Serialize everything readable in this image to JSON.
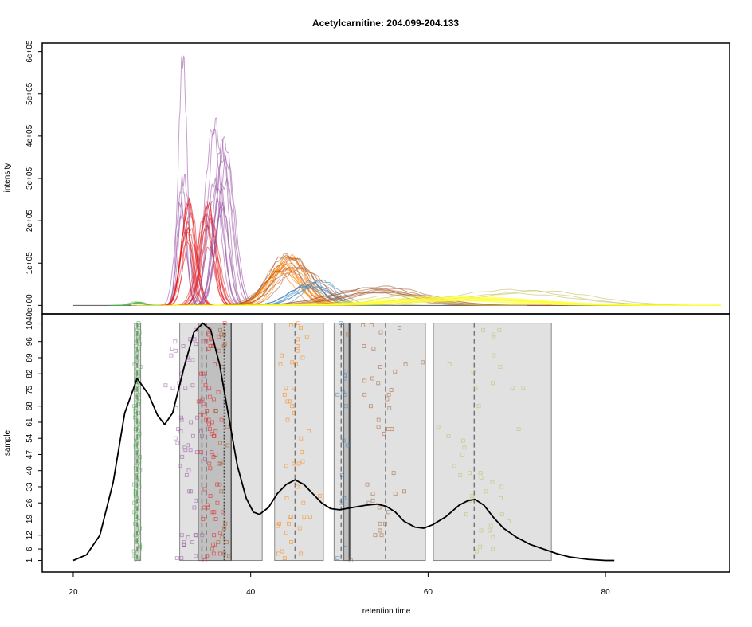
{
  "chart_data": [
    {
      "type": "line",
      "panel": "chromatograms",
      "title": "Acetylcarnitine: 204.099-204.133",
      "ylabel": "intensity",
      "xlim": [
        16.5,
        94
      ],
      "ylim": [
        -20000,
        620000
      ],
      "y_ticks": [
        0,
        100000,
        200000,
        300000,
        400000,
        500000,
        600000
      ],
      "y_tick_labels": [
        "0e+00",
        "1e+05",
        "2e+05",
        "3e+05",
        "4e+05",
        "5e+05",
        "6e+05"
      ],
      "baseline_range": [
        20,
        93
      ],
      "groups": [
        {
          "color": "#4daf4a",
          "rt": 27.2,
          "height": 9000,
          "width": 0.7,
          "count": 6
        },
        {
          "color": "#984ea3",
          "rt": 32.2,
          "height": 590000,
          "width": 0.45,
          "count": 1
        },
        {
          "color": "#984ea3",
          "rt": 32.3,
          "height": 320000,
          "width": 0.6,
          "count": 4
        },
        {
          "color": "#e41a1c",
          "rt": 33.0,
          "height": 250000,
          "width": 0.8,
          "count": 10
        },
        {
          "color": "#e41a1c",
          "rt": 35.2,
          "height": 250000,
          "width": 0.9,
          "count": 10
        },
        {
          "color": "#984ea3",
          "rt": 35.9,
          "height": 460000,
          "width": 0.8,
          "count": 4
        },
        {
          "color": "#984ea3",
          "rt": 36.9,
          "height": 420000,
          "width": 0.9,
          "count": 8
        },
        {
          "color": "#ff7f00",
          "rt": 43.8,
          "height": 130000,
          "width": 2.0,
          "count": 14
        },
        {
          "color": "#a65628",
          "rt": 44.5,
          "height": 130000,
          "width": 2.4,
          "count": 8
        },
        {
          "color": "#377eb8",
          "rt": 47.0,
          "height": 60000,
          "width": 2.2,
          "count": 8
        },
        {
          "color": "#a65628",
          "rt": 54.0,
          "height": 45000,
          "width": 4.5,
          "count": 8
        },
        {
          "color": "#bebe5a",
          "rt": 57.0,
          "height": 25000,
          "width": 3.5,
          "count": 3
        },
        {
          "color": "#bebe5a",
          "rt": 71.0,
          "height": 40000,
          "width": 6.0,
          "count": 3
        },
        {
          "color": "#ffff33",
          "rt": 64.0,
          "height": 20000,
          "width": 8.0,
          "count": 14
        }
      ]
    },
    {
      "type": "scatter",
      "panel": "peak-density",
      "xlabel": "retention time",
      "ylabel": "sample",
      "xlim": [
        16.5,
        94
      ],
      "ylim": [
        -4,
        108
      ],
      "x_ticks": [
        20,
        40,
        60,
        80
      ],
      "y_ticks": [
        1,
        6,
        12,
        19,
        26,
        33,
        40,
        47,
        54,
        61,
        68,
        75,
        82,
        89,
        96,
        104
      ],
      "feature_groups_light": [
        [
          26.9,
          27.6
        ],
        [
          32.0,
          41.3
        ],
        [
          42.7,
          48.2
        ],
        [
          49.4,
          59.7
        ],
        [
          60.6,
          73.9
        ]
      ],
      "feature_groups_dark": [
        [
          34.1,
          37.8
        ],
        [
          50.5,
          51.2
        ]
      ],
      "dashed_lines": [
        27.2,
        34.5,
        35.0,
        45.0,
        50.2,
        55.2,
        65.2
      ],
      "dotted_lines": [
        37.0
      ],
      "solid_lines": [
        37.8,
        51.1
      ],
      "density_curve": [
        [
          20.0,
          1.0
        ],
        [
          21.5,
          3.5
        ],
        [
          23.0,
          12.0
        ],
        [
          24.5,
          35.0
        ],
        [
          25.8,
          65.0
        ],
        [
          27.2,
          80.0
        ],
        [
          28.5,
          73.0
        ],
        [
          29.5,
          64.0
        ],
        [
          30.3,
          60.0
        ],
        [
          31.2,
          65.0
        ],
        [
          32.5,
          85.0
        ],
        [
          33.6,
          100.0
        ],
        [
          34.6,
          104.0
        ],
        [
          35.5,
          101.0
        ],
        [
          36.5,
          86.0
        ],
        [
          37.5,
          64.0
        ],
        [
          38.5,
          42.0
        ],
        [
          39.5,
          28.0
        ],
        [
          40.3,
          22.0
        ],
        [
          41.0,
          21.0
        ],
        [
          42.0,
          24.0
        ],
        [
          43.0,
          30.0
        ],
        [
          44.0,
          34.0
        ],
        [
          45.0,
          36.0
        ],
        [
          46.0,
          34.0
        ],
        [
          47.0,
          30.0
        ],
        [
          48.0,
          26.0
        ],
        [
          49.0,
          23.5
        ],
        [
          50.0,
          23.0
        ],
        [
          51.5,
          24.0
        ],
        [
          53.0,
          25.0
        ],
        [
          54.3,
          25.5
        ],
        [
          55.3,
          24.5
        ],
        [
          56.3,
          22.0
        ],
        [
          57.3,
          18.0
        ],
        [
          58.5,
          15.5
        ],
        [
          59.5,
          15.0
        ],
        [
          60.5,
          16.5
        ],
        [
          62.0,
          20.0
        ],
        [
          63.5,
          25.0
        ],
        [
          64.5,
          27.0
        ],
        [
          65.3,
          27.5
        ],
        [
          66.3,
          25.0
        ],
        [
          67.3,
          20.0
        ],
        [
          68.5,
          15.0
        ],
        [
          70.0,
          11.0
        ],
        [
          71.5,
          8.0
        ],
        [
          73.0,
          6.0
        ],
        [
          74.5,
          4.0
        ],
        [
          76.0,
          2.5
        ],
        [
          78.0,
          1.5
        ],
        [
          80.0,
          1.0
        ],
        [
          81.0,
          1.0
        ]
      ],
      "peak_points": [
        {
          "color": "#4daf4a",
          "center": 27.2,
          "spread": 0.25,
          "count": 104
        },
        {
          "color": "#984ea3",
          "center": 33.0,
          "spread": 1.4,
          "count": 60
        },
        {
          "color": "#e41a1c",
          "center": 35.5,
          "spread": 1.0,
          "count": 60
        },
        {
          "color": "#a65628",
          "center": 36.8,
          "spread": 0.7,
          "count": 25
        },
        {
          "color": "#ff7f00",
          "center": 45.0,
          "spread": 1.8,
          "count": 45
        },
        {
          "color": "#377eb8",
          "center": 50.3,
          "spread": 0.6,
          "count": 15
        },
        {
          "color": "#a65628",
          "center": 55.0,
          "spread": 2.8,
          "count": 40
        },
        {
          "color": "#bebe5a",
          "center": 66.0,
          "spread": 4.0,
          "count": 40
        }
      ]
    }
  ]
}
